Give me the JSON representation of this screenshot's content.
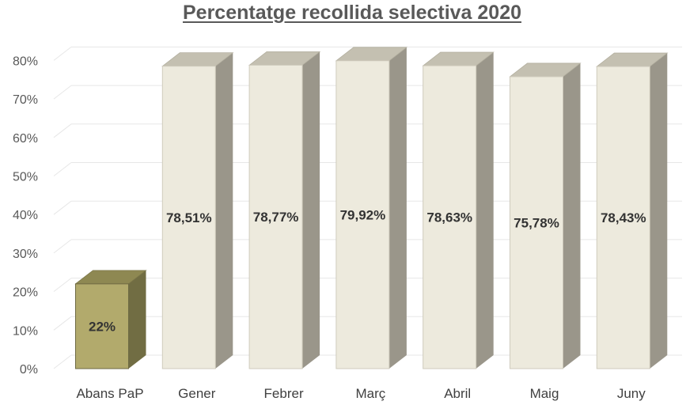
{
  "chart_data": {
    "type": "bar",
    "title": "Percentatge recollida selectiva 2020",
    "categories": [
      "Abans PaP",
      "Gener",
      "Febrer",
      "Març",
      "Abril",
      "Maig",
      "Juny"
    ],
    "values": [
      22,
      78.51,
      78.77,
      79.92,
      78.63,
      75.78,
      78.43
    ],
    "data_labels": [
      "22%",
      "78,51%",
      "78,77%",
      "79,92%",
      "78,63%",
      "75,78%",
      "78,43%"
    ],
    "yticks": [
      "0%",
      "10%",
      "20%",
      "30%",
      "40%",
      "50%",
      "60%",
      "70%",
      "80%"
    ],
    "ylim": [
      0,
      80
    ],
    "grid": true,
    "legend": "none",
    "three_d": true,
    "colors": {
      "highlight_front": "#b2aa6c",
      "highlight_side": "#716d43",
      "highlight_top": "#8e8852",
      "bar_front": "#edeadd",
      "bar_side": "#9a968a",
      "bar_top": "#c4c0b1",
      "grid": "#e7e7e7"
    }
  }
}
